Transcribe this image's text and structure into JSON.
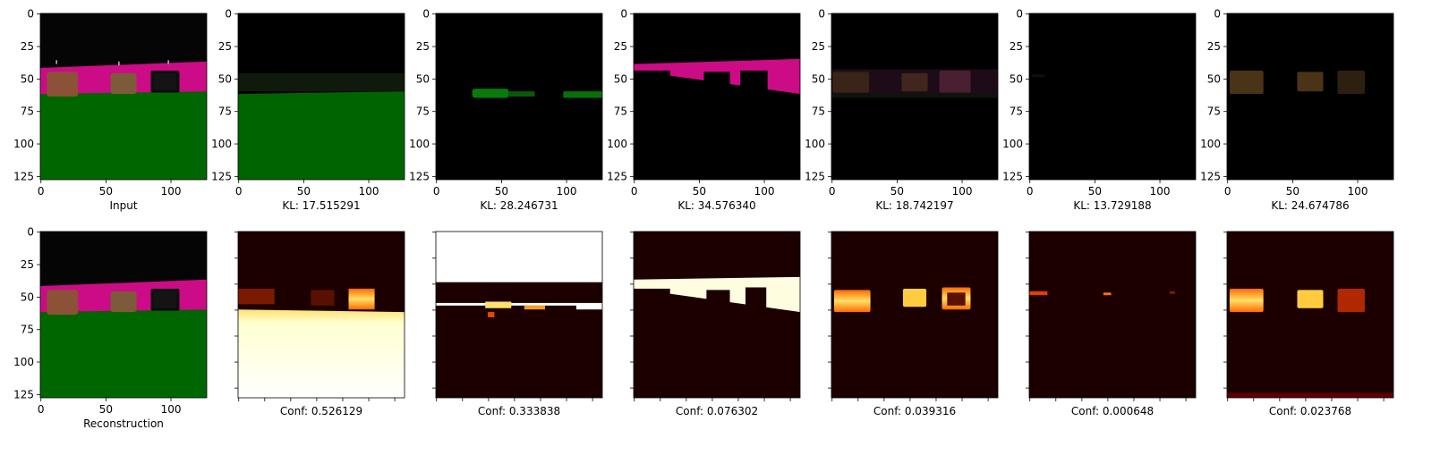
{
  "figure": {
    "rows": 2,
    "cols": 7,
    "background": "#ffffff"
  },
  "palette": {
    "black": "#000000",
    "sky": "#050505",
    "wall_magenta": "#cc0b87",
    "floor_green": "#006600",
    "box_brown": "#8b5238",
    "box_tan": "#7d5a3a",
    "heat_low": "#1a0000",
    "heat_mid": "#e03000",
    "heat_high": "#fff2a0",
    "heat_max": "#ffffff"
  },
  "chart_data": [
    {
      "type": "image",
      "panel": "input",
      "row": 0,
      "col": 0,
      "xlabel": "Input",
      "xlim": [
        0,
        127
      ],
      "ylim": [
        127,
        0
      ],
      "xticks": [
        0,
        50,
        100
      ],
      "yticks": [
        0,
        25,
        50,
        75,
        100,
        125
      ],
      "show_tick_labels": true,
      "content": "scene: black sky, magenta wall band, three brown/black boxes, green floor"
    },
    {
      "type": "image",
      "panel": "component",
      "component": 1,
      "row": 0,
      "col": 1,
      "xlabel": "KL: 17.515291",
      "kl": 17.515291,
      "xlim": [
        0,
        127
      ],
      "ylim": [
        127,
        0
      ],
      "xticks": [
        0,
        50,
        100
      ],
      "yticks": [
        0,
        25,
        50,
        75,
        100,
        125
      ],
      "show_tick_labels": true,
      "content": "green floor region"
    },
    {
      "type": "image",
      "panel": "component",
      "component": 2,
      "row": 0,
      "col": 2,
      "xlabel": "KL: 28.246731",
      "kl": 28.246731,
      "xlim": [
        0,
        127
      ],
      "ylim": [
        127,
        0
      ],
      "xticks": [
        0,
        50,
        100
      ],
      "yticks": [
        0,
        25,
        50,
        75,
        100,
        125
      ],
      "show_tick_labels": true,
      "content": "thin green strip near floor edge"
    },
    {
      "type": "image",
      "panel": "component",
      "component": 3,
      "row": 0,
      "col": 3,
      "xlabel": "KL: 34.576340",
      "kl": 34.57634,
      "xlim": [
        0,
        127
      ],
      "ylim": [
        127,
        0
      ],
      "xticks": [
        0,
        50,
        100
      ],
      "yticks": [
        0,
        25,
        50,
        75,
        100,
        125
      ],
      "show_tick_labels": true,
      "content": "magenta wall band with object cut-outs"
    },
    {
      "type": "image",
      "panel": "component",
      "component": 4,
      "row": 0,
      "col": 4,
      "xlabel": "KL: 18.742197",
      "kl": 18.742197,
      "xlim": [
        0,
        127
      ],
      "ylim": [
        127,
        0
      ],
      "xticks": [
        0,
        50,
        100
      ],
      "yticks": [
        0,
        25,
        50,
        75,
        100,
        125
      ],
      "show_tick_labels": true,
      "content": "faint objects"
    },
    {
      "type": "image",
      "panel": "component",
      "component": 5,
      "row": 0,
      "col": 5,
      "xlabel": "KL: 13.729188",
      "kl": 13.729188,
      "xlim": [
        0,
        127
      ],
      "ylim": [
        127,
        0
      ],
      "xticks": [
        0,
        50,
        100
      ],
      "yticks": [
        0,
        25,
        50,
        75,
        100,
        125
      ],
      "show_tick_labels": true,
      "content": "nearly empty"
    },
    {
      "type": "image",
      "panel": "component",
      "component": 6,
      "row": 0,
      "col": 6,
      "xlabel": "KL: 24.674786",
      "kl": 24.674786,
      "xlim": [
        0,
        127
      ],
      "ylim": [
        127,
        0
      ],
      "xticks": [
        0,
        50,
        100
      ],
      "yticks": [
        0,
        25,
        50,
        75,
        100,
        125
      ],
      "show_tick_labels": true,
      "content": "faint tan objects"
    },
    {
      "type": "image",
      "panel": "reconstruction",
      "row": 1,
      "col": 0,
      "xlabel": "Reconstruction",
      "xlim": [
        0,
        127
      ],
      "ylim": [
        127,
        0
      ],
      "xticks": [
        0,
        50,
        100
      ],
      "yticks": [
        0,
        25,
        50,
        75,
        100,
        125
      ],
      "show_tick_labels": true,
      "content": "reconstructed scene"
    },
    {
      "type": "heatmap",
      "panel": "mask",
      "component": 1,
      "row": 1,
      "col": 1,
      "xlabel": "Conf: 0.526129",
      "conf": 0.526129,
      "show_tick_labels": false,
      "content": "floor mask (bright below horizon)"
    },
    {
      "type": "heatmap",
      "panel": "mask",
      "component": 2,
      "row": 1,
      "col": 2,
      "xlabel": "Conf: 0.333838",
      "conf": 0.333838,
      "show_tick_labels": false,
      "content": "sky mask (bright top)"
    },
    {
      "type": "heatmap",
      "panel": "mask",
      "component": 3,
      "row": 1,
      "col": 3,
      "xlabel": "Conf: 0.076302",
      "conf": 0.076302,
      "show_tick_labels": false,
      "content": "wall mask"
    },
    {
      "type": "heatmap",
      "panel": "mask",
      "component": 4,
      "row": 1,
      "col": 4,
      "xlabel": "Conf: 0.039316",
      "conf": 0.039316,
      "show_tick_labels": false,
      "content": "objects mask"
    },
    {
      "type": "heatmap",
      "panel": "mask",
      "component": 5,
      "row": 1,
      "col": 5,
      "xlabel": "Conf: 0.000648",
      "conf": 0.000648,
      "show_tick_labels": false,
      "content": "small specks"
    },
    {
      "type": "heatmap",
      "panel": "mask",
      "component": 6,
      "row": 1,
      "col": 6,
      "xlabel": "Conf: 0.023768",
      "conf": 0.023768,
      "show_tick_labels": false,
      "content": "objects mask"
    }
  ]
}
